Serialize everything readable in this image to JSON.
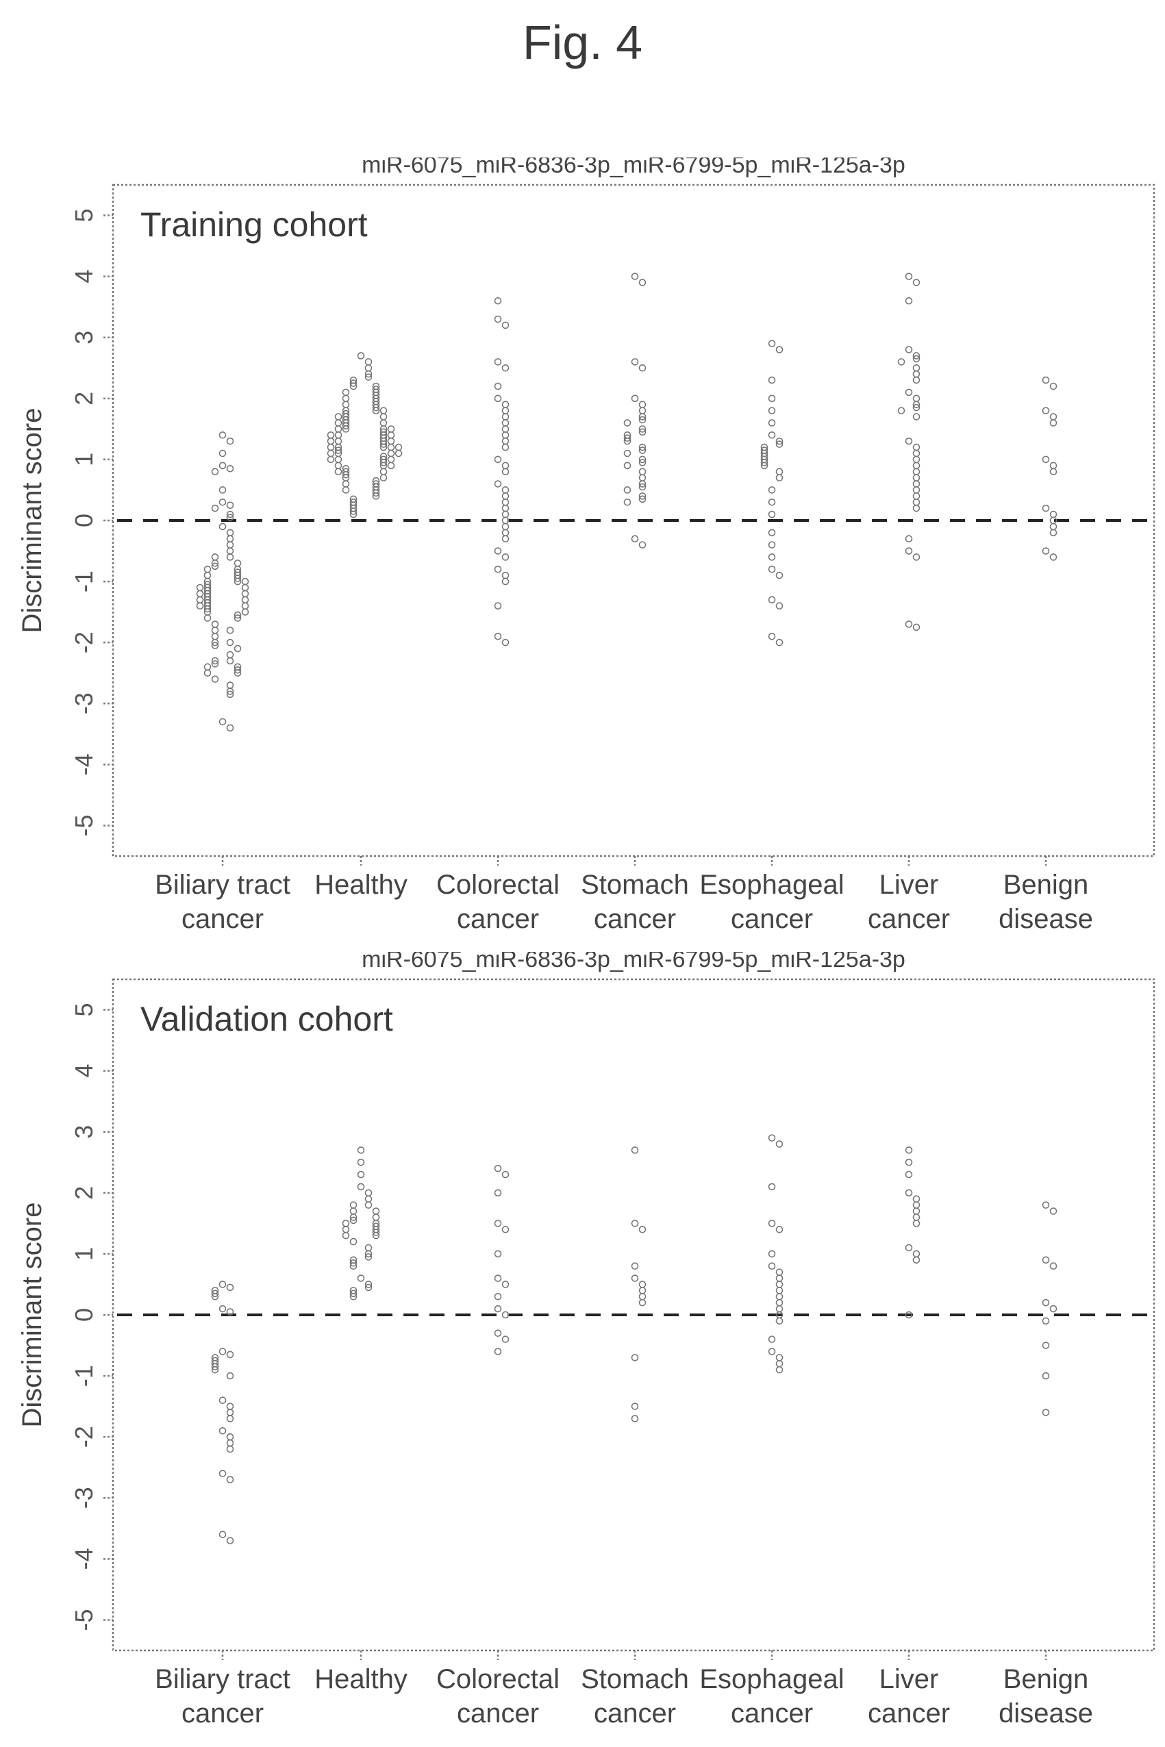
{
  "figure_title": "Fig. 4",
  "chart_data": [
    {
      "type": "scatter",
      "title": "miR-6075_miR-6836-3p_miR-6799-5p_miR-125a-3p",
      "annotation": "Training cohort",
      "ylabel": "Discriminant score",
      "xlabel": "",
      "ylim": [
        -5.5,
        5.5
      ],
      "yticks": [
        "-5",
        "-4",
        "-3",
        "-2",
        "-1",
        "0",
        "1",
        "2",
        "3",
        "4",
        "5"
      ],
      "threshold": 0,
      "grid": false,
      "categories": [
        {
          "label": [
            "Biliary tract",
            "cancer"
          ],
          "points": [
            1.4,
            1.3,
            1.1,
            0.9,
            0.85,
            0.8,
            0.5,
            0.3,
            0.25,
            0.2,
            0.1,
            0.05,
            -0.1,
            -0.2,
            -0.3,
            -0.4,
            -0.5,
            -0.6,
            -0.6,
            -0.7,
            -0.7,
            -0.75,
            -0.8,
            -0.8,
            -0.85,
            -0.9,
            -0.9,
            -0.95,
            -1.0,
            -1.0,
            -1.0,
            -1.05,
            -1.1,
            -1.1,
            -1.1,
            -1.15,
            -1.2,
            -1.2,
            -1.2,
            -1.25,
            -1.3,
            -1.3,
            -1.3,
            -1.35,
            -1.4,
            -1.4,
            -1.4,
            -1.45,
            -1.5,
            -1.5,
            -1.55,
            -1.6,
            -1.6,
            -1.7,
            -1.8,
            -1.8,
            -1.9,
            -2.0,
            -2.0,
            -2.05,
            -2.1,
            -2.2,
            -2.3,
            -2.3,
            -2.35,
            -2.4,
            -2.4,
            -2.45,
            -2.5,
            -2.5,
            -2.6,
            -2.7,
            -2.8,
            -2.85,
            -3.3,
            -3.4
          ]
        },
        {
          "label": [
            "Healthy",
            ""
          ],
          "points": [
            2.7,
            2.6,
            2.5,
            2.4,
            2.35,
            2.3,
            2.25,
            2.2,
            2.2,
            2.15,
            2.1,
            2.1,
            2.05,
            2.0,
            2.0,
            1.95,
            1.9,
            1.9,
            1.85,
            1.8,
            1.8,
            1.8,
            1.75,
            1.7,
            1.7,
            1.7,
            1.65,
            1.6,
            1.6,
            1.6,
            1.55,
            1.5,
            1.5,
            1.5,
            1.5,
            1.45,
            1.4,
            1.4,
            1.4,
            1.4,
            1.35,
            1.3,
            1.3,
            1.3,
            1.3,
            1.25,
            1.2,
            1.2,
            1.2,
            1.2,
            1.2,
            1.15,
            1.1,
            1.1,
            1.1,
            1.1,
            1.05,
            1.0,
            1.0,
            1.0,
            1.0,
            0.95,
            0.9,
            0.9,
            0.9,
            0.85,
            0.8,
            0.8,
            0.8,
            0.75,
            0.7,
            0.7,
            0.65,
            0.6,
            0.6,
            0.55,
            0.5,
            0.5,
            0.45,
            0.4,
            0.35,
            0.3,
            0.25,
            0.2,
            0.15,
            0.1
          ]
        },
        {
          "label": [
            "Colorectal",
            "cancer"
          ],
          "points": [
            3.6,
            3.3,
            3.2,
            2.6,
            2.5,
            2.2,
            2.0,
            1.9,
            1.8,
            1.7,
            1.6,
            1.5,
            1.4,
            1.3,
            1.2,
            1.0,
            0.9,
            0.8,
            0.6,
            0.5,
            0.4,
            0.3,
            0.2,
            0.1,
            0.0,
            -0.1,
            -0.2,
            -0.3,
            -0.5,
            -0.6,
            -0.8,
            -0.9,
            -1.0,
            -1.4,
            -1.9,
            -2.0
          ]
        },
        {
          "label": [
            "Stomach",
            "cancer"
          ],
          "points": [
            4.0,
            3.9,
            2.6,
            2.5,
            2.0,
            1.9,
            1.8,
            1.7,
            1.65,
            1.6,
            1.5,
            1.45,
            1.4,
            1.35,
            1.3,
            1.2,
            1.15,
            1.1,
            1.0,
            0.95,
            0.9,
            0.8,
            0.7,
            0.6,
            0.55,
            0.5,
            0.4,
            0.35,
            0.3,
            -0.3,
            -0.4
          ]
        },
        {
          "label": [
            "Esophageal",
            "cancer"
          ],
          "points": [
            2.9,
            2.8,
            2.3,
            2.0,
            1.8,
            1.6,
            1.4,
            1.3,
            1.25,
            1.2,
            1.15,
            1.1,
            1.05,
            1.0,
            0.95,
            0.9,
            0.8,
            0.7,
            0.5,
            0.3,
            0.1,
            -0.2,
            -0.4,
            -0.6,
            -0.8,
            -0.9,
            -1.3,
            -1.4,
            -1.9,
            -2.0
          ]
        },
        {
          "label": [
            "Liver",
            "cancer"
          ],
          "points": [
            4.0,
            3.9,
            3.6,
            2.8,
            2.7,
            2.65,
            2.6,
            2.5,
            2.4,
            2.3,
            2.1,
            2.0,
            1.9,
            1.85,
            1.8,
            1.7,
            1.3,
            1.2,
            1.1,
            1.0,
            0.9,
            0.8,
            0.7,
            0.6,
            0.5,
            0.4,
            0.3,
            0.2,
            -0.3,
            -0.5,
            -0.6,
            -1.7,
            -1.75
          ]
        },
        {
          "label": [
            "Benign",
            "disease"
          ],
          "points": [
            2.3,
            2.2,
            1.8,
            1.7,
            1.6,
            1.0,
            0.9,
            0.8,
            0.2,
            0.1,
            0.0,
            -0.1,
            -0.2,
            -0.5,
            -0.6
          ]
        }
      ]
    },
    {
      "type": "scatter",
      "title": "miR-6075_miR-6836-3p_miR-6799-5p_miR-125a-3p",
      "annotation": "Validation cohort",
      "ylabel": "Discriminant score",
      "xlabel": "",
      "ylim": [
        -5.5,
        5.5
      ],
      "yticks": [
        "-5",
        "-4",
        "-3",
        "-2",
        "-1",
        "0",
        "1",
        "2",
        "3",
        "4",
        "5"
      ],
      "threshold": 0,
      "grid": false,
      "categories": [
        {
          "label": [
            "Biliary tract",
            "cancer"
          ],
          "points": [
            0.5,
            0.45,
            0.4,
            0.35,
            0.3,
            0.1,
            0.05,
            -0.6,
            -0.65,
            -0.7,
            -0.75,
            -0.8,
            -0.85,
            -0.9,
            -1.0,
            -1.4,
            -1.5,
            -1.6,
            -1.7,
            -1.9,
            -2.0,
            -2.1,
            -2.2,
            -2.6,
            -2.7,
            -3.6,
            -3.7
          ]
        },
        {
          "label": [
            "Healthy",
            ""
          ],
          "points": [
            2.7,
            2.5,
            2.3,
            2.1,
            2.0,
            1.9,
            1.8,
            1.8,
            1.7,
            1.7,
            1.6,
            1.6,
            1.55,
            1.5,
            1.5,
            1.45,
            1.4,
            1.4,
            1.35,
            1.3,
            1.3,
            1.2,
            1.1,
            1.0,
            0.95,
            0.9,
            0.85,
            0.8,
            0.6,
            0.5,
            0.45,
            0.4,
            0.35,
            0.3
          ]
        },
        {
          "label": [
            "Colorectal",
            "cancer"
          ],
          "points": [
            2.4,
            2.3,
            2.0,
            1.5,
            1.4,
            1.0,
            0.6,
            0.5,
            0.3,
            0.1,
            0.0,
            -0.3,
            -0.4,
            -0.6
          ]
        },
        {
          "label": [
            "Stomach",
            "cancer"
          ],
          "points": [
            2.7,
            1.5,
            1.4,
            0.8,
            0.6,
            0.5,
            0.4,
            0.3,
            0.2,
            -0.7,
            -1.5,
            -1.7
          ]
        },
        {
          "label": [
            "Esophageal",
            "cancer"
          ],
          "points": [
            2.9,
            2.8,
            2.1,
            1.5,
            1.4,
            1.0,
            0.8,
            0.7,
            0.6,
            0.5,
            0.4,
            0.3,
            0.2,
            0.1,
            0.0,
            -0.1,
            -0.4,
            -0.6,
            -0.7,
            -0.8,
            -0.9
          ]
        },
        {
          "label": [
            "Liver",
            "cancer"
          ],
          "points": [
            2.7,
            2.5,
            2.3,
            2.0,
            1.9,
            1.8,
            1.7,
            1.6,
            1.5,
            1.1,
            1.0,
            0.9,
            0.0
          ]
        },
        {
          "label": [
            "Benign",
            "disease"
          ],
          "points": [
            1.8,
            1.7,
            0.9,
            0.8,
            0.2,
            0.1,
            -0.1,
            -0.5,
            -1.0,
            -1.6
          ]
        }
      ]
    }
  ]
}
